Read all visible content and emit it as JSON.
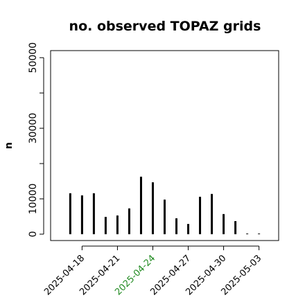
{
  "chart_data": {
    "type": "spike",
    "title": "no. observed TOPAZ grids",
    "ylabel": "n",
    "x": [
      "2025-04-17",
      "2025-04-18",
      "2025-04-19",
      "2025-04-20",
      "2025-04-21",
      "2025-04-22",
      "2025-04-23",
      "2025-04-24",
      "2025-04-25",
      "2025-04-26",
      "2025-04-27",
      "2025-04-28",
      "2025-04-29",
      "2025-04-30",
      "2025-05-01",
      "2025-05-02",
      "2025-05-03"
    ],
    "values": [
      11600,
      11000,
      11600,
      4900,
      5300,
      7300,
      16300,
      14700,
      9800,
      4500,
      2900,
      10600,
      11400,
      5700,
      3700,
      200,
      200
    ],
    "color": "#000000",
    "xlim": [
      "2025-04-15T08:00",
      "2025-05-04T16:00"
    ],
    "xticks": [
      "2025-04-18",
      "2025-04-21",
      "2025-04-24",
      "2025-04-27",
      "2025-04-30",
      "2025-05-03"
    ],
    "xtick_colors": [
      "#000000",
      "#000000",
      "#228b22",
      "#000000",
      "#000000",
      "#000000"
    ],
    "ylim": [
      -1800,
      52000
    ],
    "yticks": [
      0,
      10000,
      30000,
      50000
    ],
    "yminor_ticks": [
      20000,
      40000
    ]
  }
}
